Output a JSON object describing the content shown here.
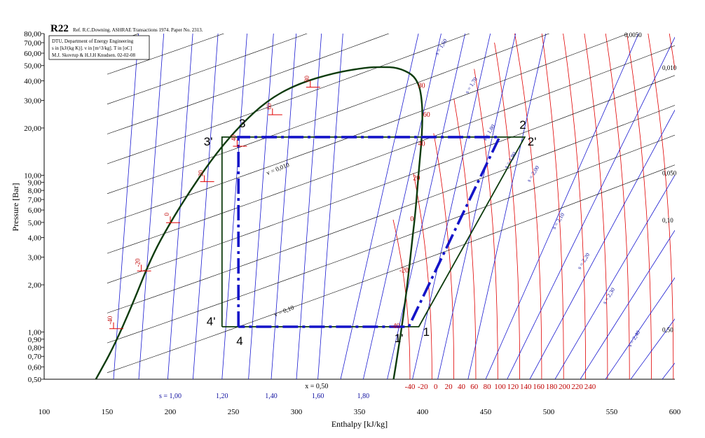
{
  "chart_data": {
    "type": "line",
    "title": "R22",
    "reference": "Ref. R.C.Downing. ASHRAE Transactions 1974. Paper No. 2313.",
    "info_box": [
      "DTU, Department of Energy Engineering",
      "s in [kJ/(kg K)]. v in [m^3/kg]. T in [oC]",
      "M.J. Skovrup & H.J.H Knudsen. 02-02-08"
    ],
    "xlabel": "Enthalpy [kJ/kg]",
    "ylabel": "Pressure [Bar]",
    "x_scale": "linear",
    "y_scale": "log",
    "xlim": [
      100,
      600
    ],
    "ylim": [
      0.5,
      80
    ],
    "x_ticks": [
      "100",
      "150",
      "200",
      "250",
      "300",
      "350",
      "400",
      "450",
      "500",
      "550",
      "600"
    ],
    "y_ticks": [
      {
        "value": 0.5,
        "label": "0,50"
      },
      {
        "value": 0.6,
        "label": "0,60"
      },
      {
        "value": 0.7,
        "label": "0,70"
      },
      {
        "value": 0.8,
        "label": "0,80"
      },
      {
        "value": 0.9,
        "label": "0,90"
      },
      {
        "value": 1,
        "label": "1,00"
      },
      {
        "value": 2,
        "label": "2,00"
      },
      {
        "value": 3,
        "label": "3,00"
      },
      {
        "value": 4,
        "label": "4,00"
      },
      {
        "value": 5,
        "label": "5,00"
      },
      {
        "value": 6,
        "label": "6,00"
      },
      {
        "value": 7,
        "label": "7,00"
      },
      {
        "value": 8,
        "label": "8,00"
      },
      {
        "value": 9,
        "label": "9,00"
      },
      {
        "value": 10,
        "label": "10,00"
      },
      {
        "value": 20,
        "label": "20,00"
      },
      {
        "value": 30,
        "label": "30,00"
      },
      {
        "value": 40,
        "label": "40,00"
      },
      {
        "value": 50,
        "label": "50,00"
      },
      {
        "value": 60,
        "label": "60,00"
      },
      {
        "value": 70,
        "label": "70,00"
      },
      {
        "value": 80,
        "label": "80,00"
      }
    ],
    "bottom_temperature_labels": [
      "-40",
      "-20",
      "0",
      "20",
      "40",
      "60",
      "80",
      "100",
      "120",
      "140",
      "160",
      "180",
      "200",
      "220",
      "240"
    ],
    "quality_label": "x = 0,50",
    "entropy_scale_labels": [
      {
        "label": "s = 1,00",
        "h": 200
      },
      {
        "label": "1,20",
        "h": 241
      },
      {
        "label": "1,40",
        "h": 280
      },
      {
        "label": "1,60",
        "h": 317
      },
      {
        "label": "1,80",
        "h": 353
      }
    ],
    "right_volume_labels": [
      {
        "label": "0,0050",
        "h": 560,
        "p": 76
      },
      {
        "label": "0,010",
        "h": 590,
        "p": 47
      },
      {
        "label": "0,050",
        "h": 590,
        "p": 10
      },
      {
        "label": "0,10",
        "h": 590,
        "p": 5
      },
      {
        "label": "0,50",
        "h": 590,
        "p": 1
      }
    ],
    "saturation_dome": {
      "liquid": [
        [
          141,
          0.5
        ],
        [
          155,
          0.8
        ],
        [
          170,
          1.5
        ],
        [
          185,
          3
        ],
        [
          200,
          5
        ],
        [
          218,
          8.5
        ],
        [
          237,
          14
        ],
        [
          256,
          21
        ],
        [
          277,
          30
        ],
        [
          300,
          38
        ],
        [
          330,
          45
        ],
        [
          355,
          48.6
        ],
        [
          368,
          49
        ]
      ],
      "vapor": [
        [
          368,
          49
        ],
        [
          380,
          48.6
        ],
        [
          392,
          44
        ],
        [
          397,
          38
        ],
        [
          399,
          32
        ],
        [
          400,
          25
        ],
        [
          399.5,
          18
        ],
        [
          398,
          13
        ],
        [
          396.5,
          9.5
        ],
        [
          394.5,
          6
        ],
        [
          392,
          4
        ],
        [
          388.5,
          2.2
        ],
        [
          385,
          1.3
        ],
        [
          380.5,
          0.75
        ],
        [
          377,
          0.5
        ]
      ]
    },
    "sat_temp_ticks": [
      {
        "label": "-40",
        "h": 155,
        "p": 1.05
      },
      {
        "label": "-20",
        "h": 177,
        "p": 2.45
      },
      {
        "label": "0",
        "h": 200,
        "p": 4.98
      },
      {
        "label": "20",
        "h": 227,
        "p": 9.1
      },
      {
        "label": "40",
        "h": 253,
        "p": 15.3
      },
      {
        "label": "60",
        "h": 281,
        "p": 24.3
      },
      {
        "label": "80",
        "h": 311,
        "p": 36.4
      }
    ],
    "vapor_temp_labels": [
      {
        "label": "-40",
        "h": 382,
        "p": 1.06
      },
      {
        "label": "-20",
        "h": 389,
        "p": 2.4
      },
      {
        "label": "0",
        "h": 393,
        "p": 5.1
      },
      {
        "label": "20",
        "h": 398,
        "p": 9.3
      },
      {
        "label": "40",
        "h": 402,
        "p": 15.4
      },
      {
        "label": "60",
        "h": 406,
        "p": 23.5
      },
      {
        "label": "80",
        "h": 402,
        "p": 36
      }
    ],
    "isotherm_temps_vapor": [
      -40,
      -20,
      0,
      20,
      40,
      60,
      80,
      100,
      120,
      140,
      160,
      180,
      200,
      220,
      240
    ],
    "isentrope_labels": [
      {
        "label": "s = 1,60",
        "h": 412,
        "p": 58
      },
      {
        "label": "s = 1,70",
        "h": 436,
        "p": 33
      },
      {
        "label": "s = 1,80",
        "h": 450,
        "p": 16.5
      },
      {
        "label": "s = 1,90",
        "h": 467,
        "p": 11
      },
      {
        "label": "s = 2,00",
        "h": 485,
        "p": 9
      },
      {
        "label": "s = 2,10",
        "h": 505,
        "p": 4.5
      },
      {
        "label": "s = 2,20",
        "h": 525,
        "p": 2.5
      },
      {
        "label": "s = 2,30",
        "h": 545,
        "p": 1.5
      },
      {
        "label": "s = 2,40",
        "h": 565,
        "p": 0.8
      }
    ],
    "isochore_labels": [
      {
        "label": "v = 0,010",
        "h": 277,
        "p": 10
      },
      {
        "label": "v = 0,10",
        "h": 283,
        "p": 1.25
      }
    ],
    "series": [
      {
        "name": "",
        "style": "solid-dark-green",
        "points": [
          [
            241,
            1.08
          ],
          [
            241,
            17.5
          ],
          [
            469,
            17.5
          ],
          [
            481,
            17.5
          ],
          [
            397,
            1.08
          ],
          [
            241,
            1.08
          ]
        ]
      },
      {
        "name": "",
        "style": "dashed-blue",
        "points": [
          [
            254,
            1.08
          ],
          [
            254,
            17.5
          ],
          [
            461,
            17.5
          ],
          [
            389,
            1.08
          ],
          [
            254,
            1.08
          ]
        ]
      }
    ],
    "state_points": [
      {
        "label": "3",
        "h": 255,
        "p": 17.5,
        "dx": -1,
        "dy": -14
      },
      {
        "label": "3'",
        "h": 241,
        "p": 17.5,
        "dx": -26,
        "dy": 12
      },
      {
        "label": "2",
        "h": 469,
        "p": 17.5,
        "dx": 14,
        "dy": -12
      },
      {
        "label": "2'",
        "h": 481,
        "p": 17.5,
        "dx": 4,
        "dy": 12
      },
      {
        "label": "4'",
        "h": 241,
        "p": 1.08,
        "dx": -22,
        "dy": -2
      },
      {
        "label": "4",
        "h": 254,
        "p": 1.08,
        "dx": -3,
        "dy": 26
      },
      {
        "label": "1",
        "h": 397,
        "p": 1.08,
        "dx": 6,
        "dy": 13
      },
      {
        "label": "1'",
        "h": 386,
        "p": 1.08,
        "dx": -15,
        "dy": 22
      }
    ],
    "colors": {
      "cycle_solid": "#0d3b0d",
      "cycle_dashed": "#1414c8",
      "dome": "#0d3b0d",
      "isotherm": "#e00000",
      "isentrope": "#1a1ad0",
      "isochore": "#000000",
      "axis": "#000000"
    },
    "grid": false,
    "legend": "none"
  }
}
